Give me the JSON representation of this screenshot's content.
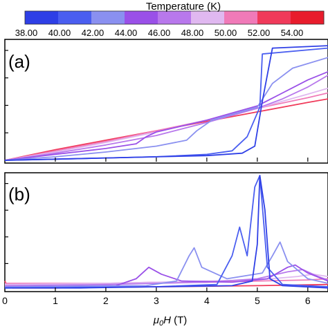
{
  "colorbar": {
    "title": "Temperature (K)",
    "labels": [
      "38.00",
      "40.00",
      "42.00",
      "44.00",
      "46.00",
      "48.00",
      "50.00",
      "52.00",
      "54.00"
    ],
    "colors": [
      "#2e3fe6",
      "#4a5ef0",
      "#8a90f0",
      "#9a50e8",
      "#b878ec",
      "#e0b8f0",
      "#f07ab8",
      "#f03a5a",
      "#e81c2c"
    ]
  },
  "chart_data": [
    {
      "panel_label": "(a)",
      "type": "line",
      "xlim": [
        0,
        6.4
      ],
      "ylim": [
        0,
        1
      ],
      "grid": false,
      "series": [
        {
          "temperature": 38,
          "color": "#2e3fe6",
          "points": [
            [
              0,
              0
            ],
            [
              1,
              0.01
            ],
            [
              2,
              0.02
            ],
            [
              3,
              0.03
            ],
            [
              4,
              0.04
            ],
            [
              4.7,
              0.06
            ],
            [
              4.95,
              0.12
            ],
            [
              5.1,
              0.5
            ],
            [
              5.3,
              0.95
            ],
            [
              6.4,
              0.97
            ]
          ]
        },
        {
          "temperature": 40,
          "color": "#4a5ef0",
          "points": [
            [
              0,
              0
            ],
            [
              1,
              0.01
            ],
            [
              2,
              0.02
            ],
            [
              3,
              0.03
            ],
            [
              4,
              0.05
            ],
            [
              4.5,
              0.08
            ],
            [
              4.8,
              0.2
            ],
            [
              5.05,
              0.45
            ],
            [
              5.1,
              0.9
            ],
            [
              6.4,
              0.95
            ]
          ]
        },
        {
          "temperature": 42,
          "color": "#8a90f0",
          "points": [
            [
              0,
              0
            ],
            [
              1,
              0.03
            ],
            [
              2,
              0.07
            ],
            [
              3,
              0.12
            ],
            [
              3.6,
              0.17
            ],
            [
              3.8,
              0.25
            ],
            [
              4.1,
              0.34
            ],
            [
              5,
              0.45
            ],
            [
              5.3,
              0.65
            ],
            [
              5.7,
              0.78
            ],
            [
              6.4,
              0.87
            ]
          ]
        },
        {
          "temperature": 44,
          "color": "#9a50e8",
          "points": [
            [
              0,
              0
            ],
            [
              1,
              0.05
            ],
            [
              2,
              0.1
            ],
            [
              2.6,
              0.14
            ],
            [
              2.8,
              0.2
            ],
            [
              3,
              0.24
            ],
            [
              4,
              0.34
            ],
            [
              5,
              0.46
            ],
            [
              5.5,
              0.57
            ],
            [
              6,
              0.68
            ],
            [
              6.4,
              0.75
            ]
          ]
        },
        {
          "temperature": 46,
          "color": "#b878ec",
          "points": [
            [
              0,
              0
            ],
            [
              1,
              0.06
            ],
            [
              2,
              0.13
            ],
            [
              3,
              0.21
            ],
            [
              4,
              0.32
            ],
            [
              5,
              0.44
            ],
            [
              5.5,
              0.52
            ],
            [
              6,
              0.62
            ],
            [
              6.4,
              0.72
            ]
          ]
        },
        {
          "temperature": 48,
          "color": "#e0b8f0",
          "points": [
            [
              0,
              0
            ],
            [
              1,
              0.07
            ],
            [
              2,
              0.15
            ],
            [
              3,
              0.24
            ],
            [
              4,
              0.34
            ],
            [
              5,
              0.44
            ],
            [
              6,
              0.56
            ],
            [
              6.4,
              0.61
            ]
          ]
        },
        {
          "temperature": 50,
          "color": "#f07ab8",
          "points": [
            [
              0,
              0
            ],
            [
              1,
              0.08
            ],
            [
              2,
              0.16
            ],
            [
              3,
              0.25
            ],
            [
              4,
              0.34
            ],
            [
              5,
              0.44
            ],
            [
              6,
              0.53
            ],
            [
              6.4,
              0.57
            ]
          ]
        },
        {
          "temperature": 52,
          "color": "#f03a5a",
          "points": [
            [
              0,
              0
            ],
            [
              1,
              0.09
            ],
            [
              2,
              0.17
            ],
            [
              3,
              0.25
            ],
            [
              4,
              0.33
            ],
            [
              5,
              0.41
            ],
            [
              6,
              0.49
            ],
            [
              6.4,
              0.52
            ]
          ]
        }
      ]
    },
    {
      "panel_label": "(b)",
      "type": "line",
      "xlabel": "μ0H (T)",
      "xticks": [
        "0",
        "1",
        "2",
        "3",
        "4",
        "5",
        "6"
      ],
      "xlim": [
        0,
        6.4
      ],
      "ylim": [
        0,
        1
      ],
      "grid": false,
      "series": [
        {
          "temperature": 38,
          "color": "#2e3fe6",
          "points": [
            [
              0,
              0.02
            ],
            [
              1.5,
              0.02
            ],
            [
              3,
              0.03
            ],
            [
              4.5,
              0.04
            ],
            [
              4.9,
              0.08
            ],
            [
              5.0,
              0.4
            ],
            [
              5.05,
              1.0
            ],
            [
              5.15,
              0.7
            ],
            [
              5.25,
              0.1
            ],
            [
              5.5,
              0.04
            ],
            [
              6.4,
              0.02
            ]
          ]
        },
        {
          "temperature": 40,
          "color": "#4a5ef0",
          "points": [
            [
              0,
              0.02
            ],
            [
              3,
              0.03
            ],
            [
              4.2,
              0.05
            ],
            [
              4.5,
              0.3
            ],
            [
              4.65,
              0.55
            ],
            [
              4.8,
              0.3
            ],
            [
              4.95,
              0.9
            ],
            [
              5.05,
              1.0
            ],
            [
              5.2,
              0.2
            ],
            [
              5.5,
              0.05
            ],
            [
              6.4,
              0.03
            ]
          ]
        },
        {
          "temperature": 42,
          "color": "#8a90f0",
          "points": [
            [
              0,
              0.03
            ],
            [
              2.8,
              0.04
            ],
            [
              3.4,
              0.08
            ],
            [
              3.65,
              0.3
            ],
            [
              3.75,
              0.37
            ],
            [
              3.9,
              0.2
            ],
            [
              4.4,
              0.1
            ],
            [
              5.1,
              0.15
            ],
            [
              5.3,
              0.3
            ],
            [
              5.45,
              0.42
            ],
            [
              5.6,
              0.25
            ],
            [
              6.0,
              0.1
            ],
            [
              6.4,
              0.06
            ]
          ]
        },
        {
          "temperature": 44,
          "color": "#9a50e8",
          "points": [
            [
              0,
              0.03
            ],
            [
              2.2,
              0.04
            ],
            [
              2.6,
              0.1
            ],
            [
              2.85,
              0.2
            ],
            [
              3.1,
              0.14
            ],
            [
              3.5,
              0.08
            ],
            [
              4.5,
              0.07
            ],
            [
              5.2,
              0.1
            ],
            [
              5.6,
              0.2
            ],
            [
              5.75,
              0.22
            ],
            [
              6,
              0.15
            ],
            [
              6.4,
              0.08
            ]
          ]
        },
        {
          "temperature": 46,
          "color": "#b878ec",
          "points": [
            [
              0,
              0.04
            ],
            [
              2,
              0.05
            ],
            [
              3,
              0.06
            ],
            [
              4,
              0.07
            ],
            [
              5,
              0.1
            ],
            [
              5.6,
              0.16
            ],
            [
              5.9,
              0.18
            ],
            [
              6.2,
              0.12
            ],
            [
              6.4,
              0.09
            ]
          ]
        },
        {
          "temperature": 48,
          "color": "#e0b8f0",
          "points": [
            [
              0,
              0.05
            ],
            [
              2,
              0.06
            ],
            [
              3,
              0.07
            ],
            [
              4,
              0.08
            ],
            [
              5,
              0.09
            ],
            [
              5.8,
              0.12
            ],
            [
              6.1,
              0.14
            ],
            [
              6.4,
              0.12
            ]
          ]
        },
        {
          "temperature": 50,
          "color": "#f07ab8",
          "points": [
            [
              0,
              0.06
            ],
            [
              2,
              0.06
            ],
            [
              3,
              0.07
            ],
            [
              4,
              0.07
            ],
            [
              5,
              0.08
            ],
            [
              6,
              0.09
            ],
            [
              6.4,
              0.1
            ]
          ]
        },
        {
          "temperature": 52,
          "color": "#f03a5a",
          "points": [
            [
              0,
              0.08
            ],
            [
              0.05,
              0.04
            ],
            [
              0.15,
              0.02
            ],
            [
              1,
              0.02
            ],
            [
              3,
              0.03
            ],
            [
              5,
              0.04
            ],
            [
              6.4,
              0.05
            ]
          ]
        }
      ]
    }
  ]
}
